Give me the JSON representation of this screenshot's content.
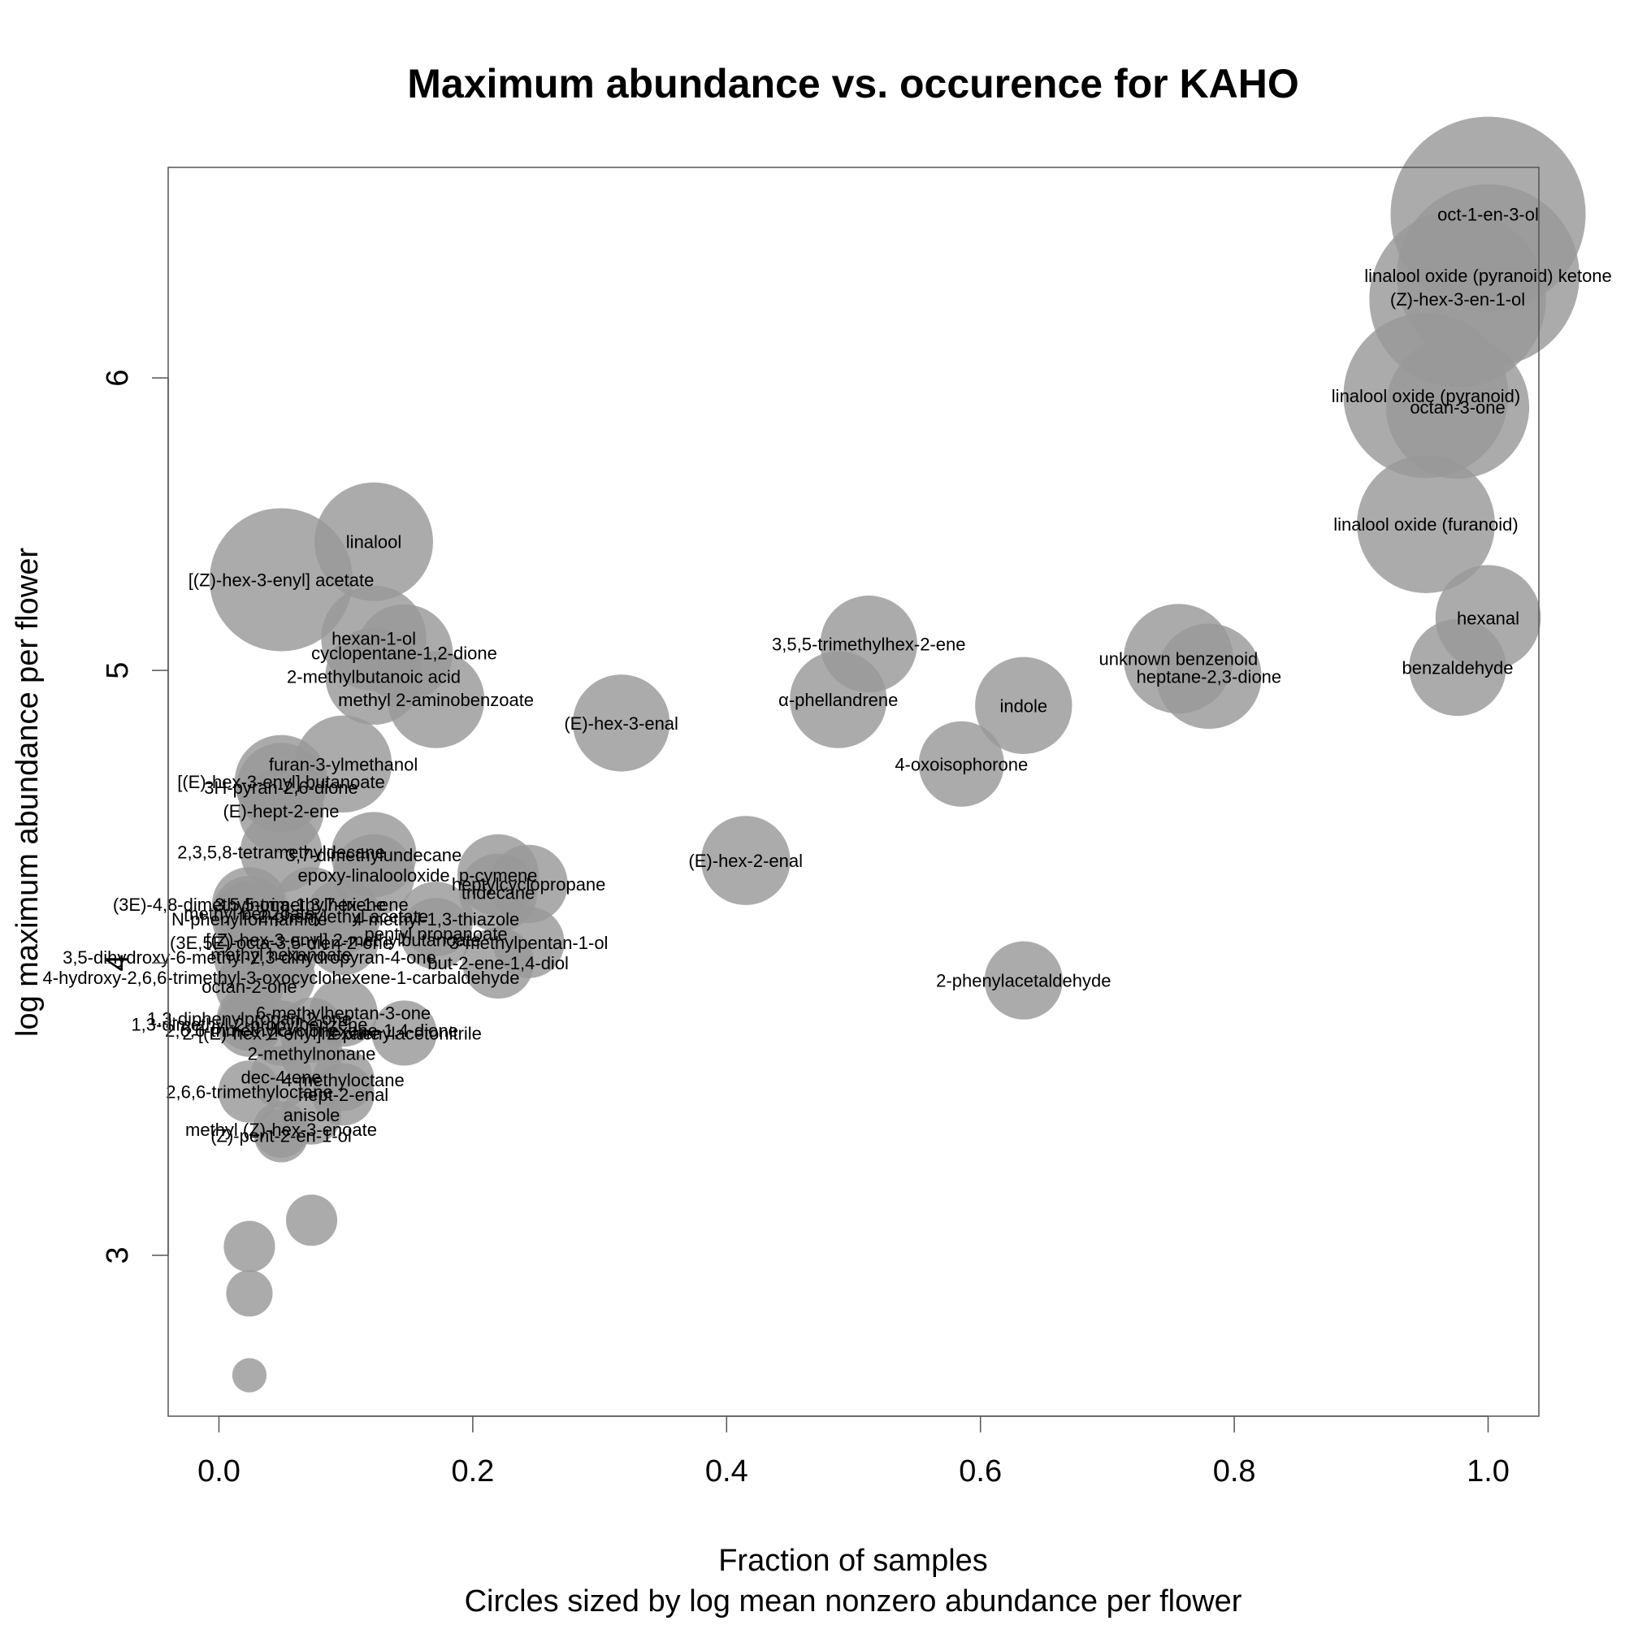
{
  "chart_data": {
    "type": "scatter",
    "title": "Maximum abundance vs. occurence for  KAHO",
    "xlabel": "Fraction of samples",
    "xlabel_sub": "Circles sized by log mean nonzero abundance per flower",
    "ylabel": "log maximum abundance per flower",
    "xlim": [
      -0.04,
      1.04
    ],
    "ylim": [
      2.45,
      6.72
    ],
    "x_ticks": [
      0.0,
      0.2,
      0.4,
      0.6,
      0.8,
      1.0
    ],
    "x_tick_labels": [
      "0.0",
      "0.2",
      "0.4",
      "0.6",
      "0.8",
      "1.0"
    ],
    "y_ticks": [
      3,
      4,
      5,
      6
    ],
    "y_tick_labels": [
      "3",
      "4",
      "5",
      "6"
    ],
    "grid": false,
    "bubble_color": "#999999",
    "points": [
      {
        "label": "oct-1-en-3-ol",
        "x": 1.0,
        "y": 6.56,
        "size": 6.5
      },
      {
        "label": "linalool oxide (pyranoid) ketone",
        "x": 1.0,
        "y": 6.35,
        "size": 6.3
      },
      {
        "label": "(Z)-hex-3-en-1-ol",
        "x": 0.976,
        "y": 6.27,
        "size": 6.2
      },
      {
        "label": "linalool oxide (pyranoid)",
        "x": 0.951,
        "y": 5.94,
        "size": 6.0
      },
      {
        "label": "octan-3-one",
        "x": 0.976,
        "y": 5.9,
        "size": 5.6
      },
      {
        "label": "linalool oxide (furanoid)",
        "x": 0.951,
        "y": 5.5,
        "size": 5.5
      },
      {
        "label": "hexanal",
        "x": 1.0,
        "y": 5.18,
        "size": 4.8
      },
      {
        "label": "benzaldehyde",
        "x": 0.976,
        "y": 5.01,
        "size": 4.6
      },
      {
        "label": "unknown benzenoid",
        "x": 0.756,
        "y": 5.04,
        "size": 4.9
      },
      {
        "label": "heptane-2,3-dione",
        "x": 0.78,
        "y": 4.98,
        "size": 4.8
      },
      {
        "label": "indole",
        "x": 0.634,
        "y": 4.88,
        "size": 4.6
      },
      {
        "label": "4-oxoisophorone",
        "x": 0.585,
        "y": 4.68,
        "size": 4.3
      },
      {
        "label": "3,5,5-trimethylhex-2-ene",
        "x": 0.512,
        "y": 5.09,
        "size": 4.6
      },
      {
        "label": "α-phellandrene",
        "x": 0.488,
        "y": 4.9,
        "size": 4.6
      },
      {
        "label": "(E)-hex-3-enal",
        "x": 0.317,
        "y": 4.82,
        "size": 4.6
      },
      {
        "label": "(E)-hex-2-enal",
        "x": 0.415,
        "y": 4.35,
        "size": 4.4
      },
      {
        "label": "2-phenylacetaldehyde",
        "x": 0.634,
        "y": 3.94,
        "size": 4.1
      },
      {
        "label": "linalool",
        "x": 0.122,
        "y": 5.44,
        "size": 5.1
      },
      {
        "label": "[(Z)-hex-3-enyl] acetate",
        "x": 0.049,
        "y": 5.31,
        "size": 5.6
      },
      {
        "label": "hexan-1-ol",
        "x": 0.122,
        "y": 5.11,
        "size": 4.8
      },
      {
        "label": "cyclopentane-1,2-dione",
        "x": 0.146,
        "y": 5.06,
        "size": 4.6
      },
      {
        "label": "2-methylbutanoic acid",
        "x": 0.122,
        "y": 4.98,
        "size": 4.6
      },
      {
        "label": "methyl 2-aminobenzoate",
        "x": 0.171,
        "y": 4.9,
        "size": 4.6
      },
      {
        "label": "furan-3-ylmethanol",
        "x": 0.098,
        "y": 4.68,
        "size": 4.6
      },
      {
        "label": "[(E)-hex-3-enyl] butanoate",
        "x": 0.049,
        "y": 4.62,
        "size": 4.5
      },
      {
        "label": "3H-pyran-2,6-dione",
        "x": 0.049,
        "y": 4.6,
        "size": 4.4
      },
      {
        "label": "(E)-hept-2-ene",
        "x": 0.049,
        "y": 4.52,
        "size": 4.3
      },
      {
        "label": "2,3,5,8-tetramethyldecane",
        "x": 0.049,
        "y": 4.38,
        "size": 4.2
      },
      {
        "label": "3,7-dimethylundecane",
        "x": 0.122,
        "y": 4.37,
        "size": 4.3
      },
      {
        "label": "epoxy-linalooloxide",
        "x": 0.122,
        "y": 4.3,
        "size": 4.2
      },
      {
        "label": "p-cymene",
        "x": 0.22,
        "y": 4.3,
        "size": 4.2
      },
      {
        "label": "heptylcyclopropane",
        "x": 0.244,
        "y": 4.27,
        "size": 4.1
      },
      {
        "label": "tridecane",
        "x": 0.22,
        "y": 4.24,
        "size": 4.1
      },
      {
        "label": "(3E)-4,8-dimethylnona-1,3,7-triene",
        "x": 0.024,
        "y": 4.2,
        "size": 4.0
      },
      {
        "label": "3,5,5-trimethylhex-1-ene",
        "x": 0.073,
        "y": 4.2,
        "size": 4.0
      },
      {
        "label": "methyl benzoate",
        "x": 0.024,
        "y": 4.17,
        "size": 4.0
      },
      {
        "label": "2-phenylethyl acetate",
        "x": 0.098,
        "y": 4.16,
        "size": 4.0
      },
      {
        "label": "N-phenylformamide",
        "x": 0.024,
        "y": 4.15,
        "size": 4.0
      },
      {
        "label": "4-methyl-1,3-thiazole",
        "x": 0.171,
        "y": 4.15,
        "size": 4.0
      },
      {
        "label": "pentyl propanoate",
        "x": 0.171,
        "y": 4.1,
        "size": 3.9
      },
      {
        "label": "[(Z)-hex-3-enyl] 2-methylbutanoate",
        "x": 0.098,
        "y": 4.08,
        "size": 3.9
      },
      {
        "label": "(3E,5E)-octa-3,5-dien-2-one",
        "x": 0.049,
        "y": 4.07,
        "size": 3.9
      },
      {
        "label": "3-methylpentan-1-ol",
        "x": 0.244,
        "y": 4.07,
        "size": 3.9
      },
      {
        "label": "methyl hexanoate",
        "x": 0.049,
        "y": 4.03,
        "size": 3.9
      },
      {
        "label": "3,5-dihydroxy-6-methyl-2,3-dihydropyran-4-one",
        "x": 0.024,
        "y": 4.02,
        "size": 3.9
      },
      {
        "label": "but-2-ene-1,4-diol",
        "x": 0.22,
        "y": 4.0,
        "size": 3.9
      },
      {
        "label": "4-hydroxy-2,6,6-trimethyl-3-oxocyclohexene-1-carbaldehyde",
        "x": 0.049,
        "y": 3.95,
        "size": 3.8
      },
      {
        "label": "octan-2-one",
        "x": 0.024,
        "y": 3.92,
        "size": 3.8
      },
      {
        "label": "6-methylheptan-3-one",
        "x": 0.098,
        "y": 3.83,
        "size": 3.8
      },
      {
        "label": "1,3-diphenylpropan-2-one",
        "x": 0.024,
        "y": 3.81,
        "size": 3.7
      },
      {
        "label": "1,3-dimethyl-2-propylbenzene",
        "x": 0.024,
        "y": 3.79,
        "size": 3.7
      },
      {
        "label": "2,6,6-trimethylcyclohexene-1,4-dione",
        "x": 0.073,
        "y": 3.77,
        "size": 3.7
      },
      {
        "label": "2-[(E)-hex-2-enyl]hexane",
        "x": 0.049,
        "y": 3.76,
        "size": 3.7
      },
      {
        "label": "2-phenylacetonitrile",
        "x": 0.146,
        "y": 3.76,
        "size": 3.7
      },
      {
        "label": "2-methylnonane",
        "x": 0.073,
        "y": 3.69,
        "size": 3.6
      },
      {
        "label": "dec-4-ene",
        "x": 0.049,
        "y": 3.61,
        "size": 3.6
      },
      {
        "label": "4-methyloctane",
        "x": 0.098,
        "y": 3.6,
        "size": 3.6
      },
      {
        "label": "2,6,6-trimethyloctane",
        "x": 0.024,
        "y": 3.56,
        "size": 3.6
      },
      {
        "label": "hept-2-enal",
        "x": 0.098,
        "y": 3.55,
        "size": 3.6
      },
      {
        "label": "anisole",
        "x": 0.073,
        "y": 3.48,
        "size": 3.5
      },
      {
        "label": "methyl (Z)-hex-3-enoate",
        "x": 0.049,
        "y": 3.43,
        "size": 3.4
      },
      {
        "label": "(Z)-pent-2-en-1-ol",
        "x": 0.049,
        "y": 3.41,
        "size": 3.3
      },
      {
        "label": "",
        "x": 0.073,
        "y": 3.12,
        "size": 3.2
      },
      {
        "label": "",
        "x": 0.024,
        "y": 3.03,
        "size": 3.2
      },
      {
        "label": "",
        "x": 0.024,
        "y": 2.87,
        "size": 3.0
      },
      {
        "label": "",
        "x": 0.024,
        "y": 2.59,
        "size": 2.4
      }
    ]
  }
}
